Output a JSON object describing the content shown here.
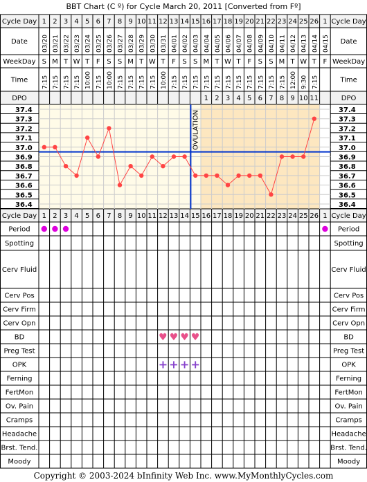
{
  "title": "BBT Chart (C º) for Cycle March 20, 2011  [Converted from Fº]",
  "copyright": "Copyright © 2003-2024 bInfinity Web Inc.    www.MyMonthlyCycles.com",
  "row_labels": {
    "cycle_day": "Cycle Day",
    "date": "Date",
    "weekday": "WeekDay",
    "time": "Time",
    "dpo": "DPO",
    "period": "Period",
    "spotting": "Spotting",
    "cerv_fluid": "Cerv Fluid",
    "cerv_pos": "Cerv Pos",
    "cerv_firm": "Cerv Firm",
    "cerv_opn": "Cerv Opn",
    "bd": "BD",
    "preg_test": "Preg Test",
    "opk": "OPK",
    "ferning": "Ferning",
    "fertmon": "FertMon",
    "ov_pain": "Ov. Pain",
    "cramps": "Cramps",
    "headache": "Headache",
    "brst_tend": "Brst. Tend.",
    "moody": "Moody"
  },
  "cycle_days": [
    "1",
    "2",
    "3",
    "4",
    "5",
    "6",
    "7",
    "8",
    "9",
    "10",
    "11",
    "12",
    "13",
    "14",
    "15",
    "16",
    "17",
    "18",
    "19",
    "20",
    "21",
    "22",
    "23",
    "24",
    "25",
    "26",
    "1"
  ],
  "dates": [
    "03/20",
    "03/21",
    "03/22",
    "03/23",
    "03/24",
    "03/25",
    "03/26",
    "03/27",
    "03/28",
    "03/29",
    "03/30",
    "03/31",
    "04/01",
    "04/02",
    "04/03",
    "04/04",
    "04/05",
    "04/06",
    "04/07",
    "04/08",
    "04/09",
    "04/10",
    "04/11",
    "04/12",
    "04/13",
    "04/14",
    "04/15"
  ],
  "weekdays": [
    "S",
    "M",
    "T",
    "W",
    "T",
    "F",
    "S",
    "S",
    "M",
    "T",
    "W",
    "T",
    "F",
    "S",
    "S",
    "M",
    "T",
    "W",
    "T",
    "F",
    "S",
    "S",
    "M",
    "T",
    "W",
    "T",
    "F"
  ],
  "times": [
    "7:15",
    "7:15",
    "7:15",
    "7:15",
    "10:00",
    "7:15",
    "10:00",
    "7:15",
    "7:15",
    "7:15",
    "7:15",
    "10:00",
    "7:15",
    "7:15",
    "7:15",
    "7:15",
    "7:15",
    "7:15",
    "7:15",
    "7:15",
    "7:15",
    "7:15",
    "7:15",
    "12:00",
    "9:30",
    "7:15",
    ""
  ],
  "dpo": [
    "",
    "",
    "",
    "",
    "",
    "",
    "",
    "",
    "",
    "",
    "",
    "",
    "",
    "",
    "",
    "1",
    "2",
    "3",
    "4",
    "5",
    "6",
    "7",
    "8",
    "9",
    "10",
    "11",
    ""
  ],
  "ovulation_label": "OVULATION",
  "chart_data": {
    "type": "line",
    "title": "BBT Chart (C º) for Cycle March 20, 2011  [Converted from Fº]",
    "xlabel": "Cycle Day",
    "ylabel": "",
    "y_ticks": [
      "37.4",
      "37.3",
      "37.2",
      "37.1",
      "37.0",
      "36.9",
      "36.8",
      "36.7",
      "36.6",
      "36.5",
      "36.4"
    ],
    "ylim": [
      36.4,
      37.4
    ],
    "x": [
      1,
      2,
      3,
      4,
      5,
      6,
      7,
      8,
      9,
      10,
      11,
      12,
      13,
      14,
      15,
      16,
      17,
      18,
      19,
      20,
      21,
      22,
      23,
      24,
      25,
      26
    ],
    "series": [
      {
        "values": [
          37.0,
          37.0,
          36.8,
          36.7,
          37.1,
          36.9,
          37.2,
          36.6,
          36.8,
          36.7,
          36.9,
          36.8,
          36.9,
          36.9,
          36.7,
          36.7,
          36.7,
          36.6,
          36.7,
          36.7,
          36.7,
          36.5,
          36.9,
          36.9,
          36.9,
          37.3
        ]
      }
    ],
    "coverline": 36.95,
    "ovulation_day": 15,
    "grid": true,
    "colors": {
      "line": "#ff4444",
      "coverline": "#0033cc",
      "pre_ovulation_bg": "#fffbe8",
      "post_ovulation_bg": "#fde7c0",
      "period_dot": "#dd00dd",
      "bd_heart": "#e8508a",
      "opk_plus": "#8844cc"
    }
  },
  "markers": {
    "period_days": [
      0,
      1,
      2,
      26
    ],
    "bd_days": [
      11,
      12,
      13,
      14
    ],
    "opk_days": [
      11,
      12,
      13,
      14
    ],
    "period_symbol": "●",
    "bd_symbol": "♥",
    "opk_symbol": "+"
  }
}
